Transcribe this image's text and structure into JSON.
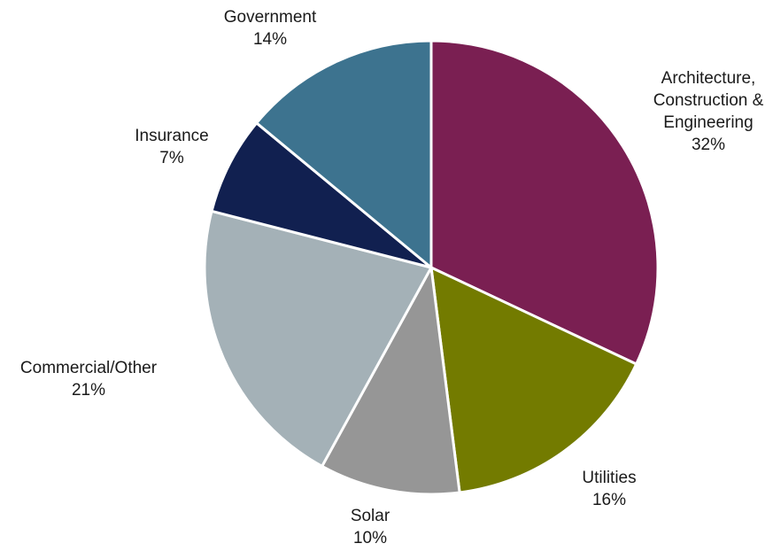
{
  "chart_data": {
    "type": "pie",
    "title": "",
    "slices": [
      {
        "label": "Architecture, Construction & Engineering",
        "label_lines": [
          "Architecture,",
          "Construction &",
          "Engineering"
        ],
        "value": 32,
        "display": "32%",
        "color": "#7a1f52"
      },
      {
        "label": "Utilities",
        "label_lines": [
          "Utilities"
        ],
        "value": 16,
        "display": "16%",
        "color": "#737b00"
      },
      {
        "label": "Solar",
        "label_lines": [
          "Solar"
        ],
        "value": 10,
        "display": "10%",
        "color": "#969696"
      },
      {
        "label": "Commercial/Other",
        "label_lines": [
          "Commercial/Other"
        ],
        "value": 21,
        "display": "21%",
        "color": "#a4b1b7"
      },
      {
        "label": "Insurance",
        "label_lines": [
          "Insurance"
        ],
        "value": 7,
        "display": "7%",
        "color": "#112050"
      },
      {
        "label": "Government",
        "label_lines": [
          "Government"
        ],
        "value": 14,
        "display": "14%",
        "color": "#3d738f"
      }
    ]
  }
}
